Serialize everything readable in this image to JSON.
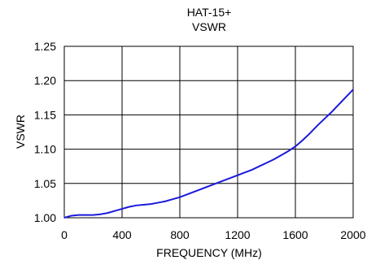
{
  "chart_data": {
    "type": "line",
    "title": "HAT-15+",
    "subtitle": "VSWR",
    "xlabel": "FREQUENCY (MHz)",
    "ylabel": "VSWR",
    "xlim": [
      0,
      2000
    ],
    "ylim": [
      1.0,
      1.25
    ],
    "xticks": [
      "0",
      "400",
      "800",
      "1200",
      "1600",
      "2000"
    ],
    "yticks": [
      "1.00",
      "1.05",
      "1.10",
      "1.15",
      "1.20",
      "1.25"
    ],
    "grid": true,
    "line_color": "#1a1adb",
    "series": [
      {
        "x": [
          0,
          50,
          100,
          150,
          200,
          250,
          300,
          350,
          400,
          450,
          500,
          550,
          600,
          650,
          700,
          750,
          800,
          850,
          900,
          950,
          1000,
          1050,
          1100,
          1150,
          1200,
          1250,
          1300,
          1350,
          1400,
          1450,
          1500,
          1550,
          1600,
          1650,
          1700,
          1750,
          1800,
          1850,
          1900,
          1950,
          2000
        ],
        "y": [
          1.0,
          1.003,
          1.004,
          1.004,
          1.004,
          1.005,
          1.007,
          1.01,
          1.013,
          1.016,
          1.018,
          1.019,
          1.02,
          1.022,
          1.024,
          1.027,
          1.03,
          1.034,
          1.038,
          1.042,
          1.046,
          1.05,
          1.054,
          1.058,
          1.062,
          1.066,
          1.07,
          1.075,
          1.08,
          1.085,
          1.091,
          1.097,
          1.104,
          1.113,
          1.123,
          1.134,
          1.144,
          1.154,
          1.165,
          1.176,
          1.187
        ]
      }
    ]
  }
}
